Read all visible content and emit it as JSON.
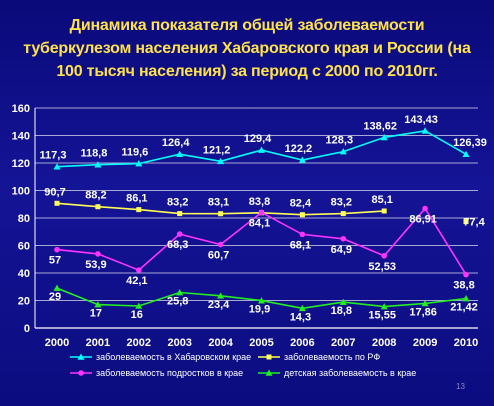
{
  "slide": {
    "title_lines": [
      "Динамика показателя общей заболеваемости",
      "туберкулезом населения Хабаровского края и России (на",
      "100 тысяч населения) за период с 2000 по 2010гг."
    ],
    "page_number": "13"
  },
  "colors": {
    "khab": "#00ffff",
    "rf": "#ffff55",
    "teen": "#ff33ff",
    "child": "#22ee22"
  },
  "chart_data": {
    "type": "line",
    "categories": [
      "2000",
      "2001",
      "2002",
      "2003",
      "2004",
      "2005",
      "2006",
      "2007",
      "2008",
      "2009",
      "2010"
    ],
    "ylim": [
      0,
      160
    ],
    "yticks": [
      0,
      20,
      40,
      60,
      80,
      100,
      120,
      140,
      160
    ],
    "grid": "horizontal",
    "legend_position": "bottom",
    "series": [
      {
        "name": "заболеваемость в Хабаровском крае",
        "color_key": "khab",
        "marker": "triangle",
        "values": [
          117.3,
          118.8,
          119.6,
          126.4,
          121.2,
          129.4,
          122.2,
          128.3,
          138.62,
          143.43,
          126.39
        ],
        "labels": [
          "117,3",
          "118,8",
          "119,6",
          "126,4",
          "121,2",
          "129,4",
          "122,2",
          "128,3",
          "138,62",
          "143,43",
          "126,39"
        ]
      },
      {
        "name": "заболеваемость по РФ",
        "color_key": "rf",
        "marker": "square",
        "values": [
          90.7,
          88.2,
          86.1,
          83.2,
          83.1,
          83.8,
          82.4,
          83.2,
          85.1,
          null,
          77.4
        ],
        "labels": [
          "90,7",
          "88,2",
          "86,1",
          "83,2",
          "83,1",
          "83,8",
          "82,4",
          "83,2",
          "85,1",
          "",
          "77,4"
        ]
      },
      {
        "name": "заболеваемость подростков в крае",
        "color_key": "teen",
        "marker": "circle",
        "values": [
          57,
          53.9,
          42.1,
          68.3,
          60.7,
          84.1,
          68.1,
          64.9,
          52.53,
          86.91,
          38.8
        ],
        "labels": [
          "57",
          "53,9",
          "42,1",
          "68,3",
          "60,7",
          "84,1",
          "68,1",
          "64,9",
          "52,53",
          "86,91",
          "38,8"
        ]
      },
      {
        "name": "детская заболеваемость в крае",
        "color_key": "child",
        "marker": "triangle",
        "values": [
          29,
          17,
          16,
          25.8,
          23.4,
          19.9,
          14.3,
          18.8,
          15.55,
          17.86,
          21.42
        ],
        "labels": [
          "29",
          "17",
          "16",
          "25,8",
          "23,4",
          "19,9",
          "14,3",
          "18,8",
          "15,55",
          "17,86",
          "21,42"
        ]
      }
    ]
  }
}
